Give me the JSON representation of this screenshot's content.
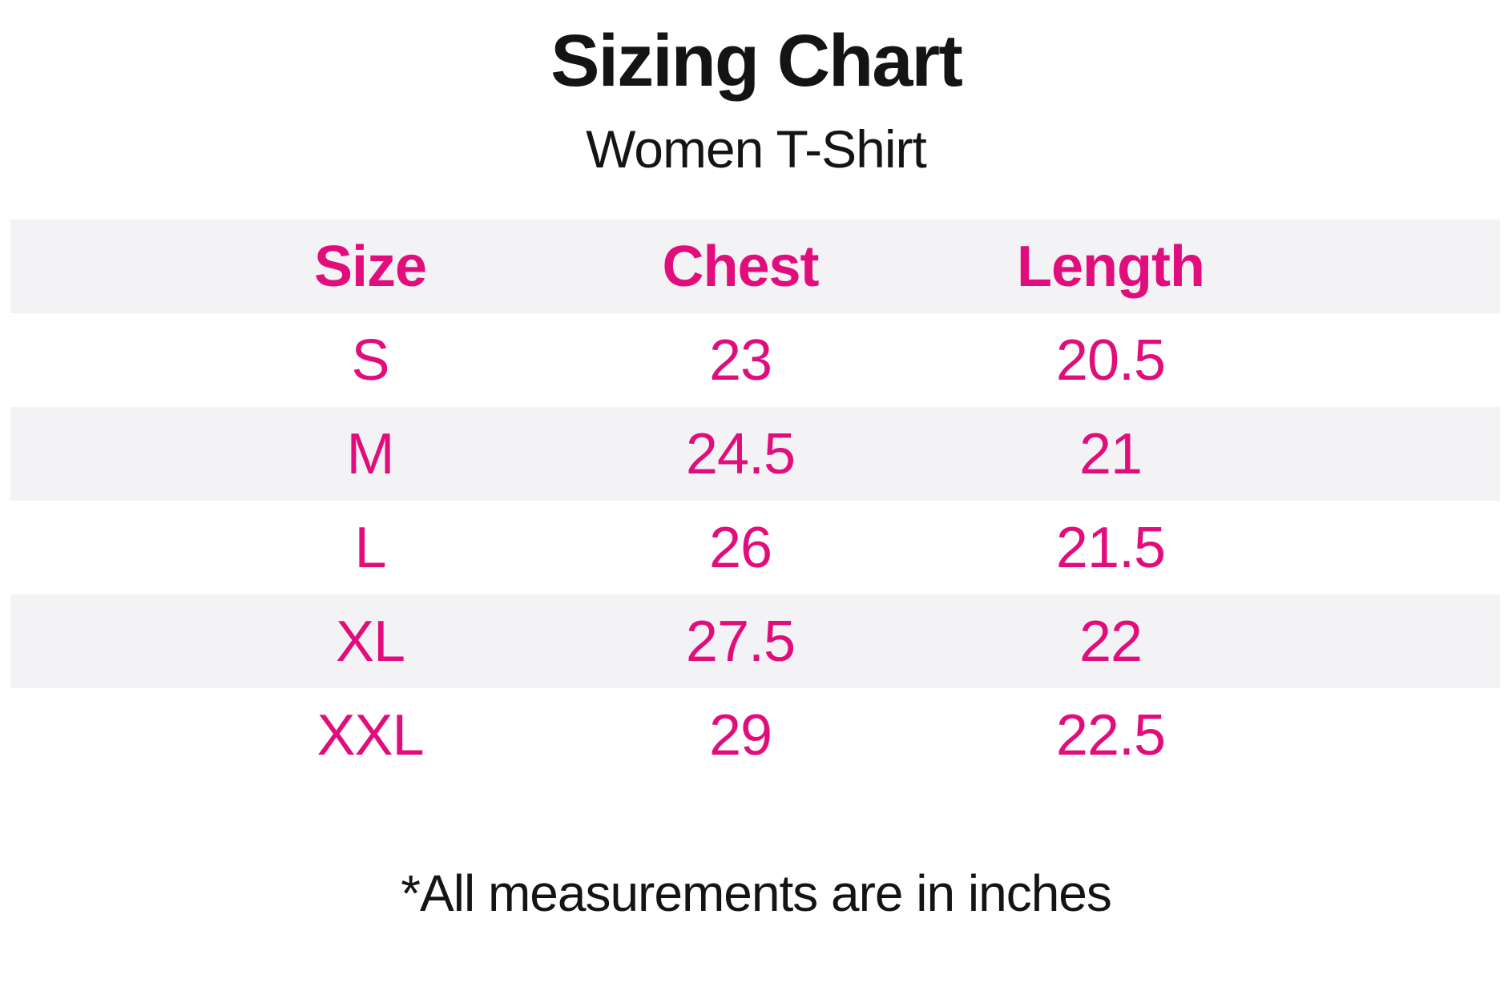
{
  "header": {
    "title": "Sizing Chart",
    "subtitle": "Women T-Shirt"
  },
  "table": {
    "columns": {
      "size": "Size",
      "chest": "Chest",
      "length": "Length"
    },
    "rows": [
      {
        "size": "S",
        "chest": "23",
        "length": "20.5"
      },
      {
        "size": "M",
        "chest": "24.5",
        "length": "21"
      },
      {
        "size": "L",
        "chest": "26",
        "length": "21.5"
      },
      {
        "size": "XL",
        "chest": "27.5",
        "length": "22"
      },
      {
        "size": "XXL",
        "chest": "29",
        "length": "22.5"
      }
    ],
    "units_note": "*All measurements are in inches"
  },
  "colors": {
    "accent_pink": "#E20D7C",
    "row_stripe": "#F3F3F5",
    "text_black": "#141414",
    "background": "#FFFFFF"
  }
}
